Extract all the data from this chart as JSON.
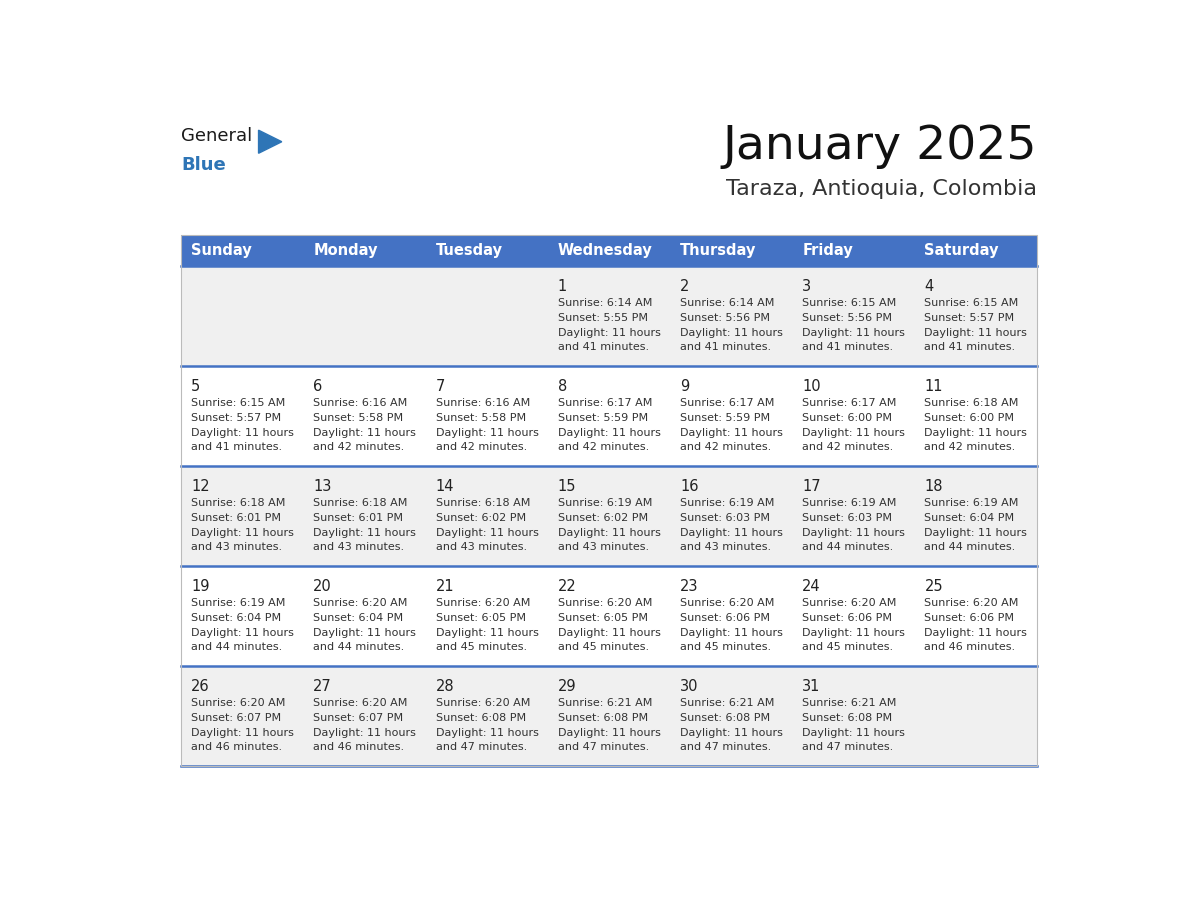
{
  "title": "January 2025",
  "subtitle": "Taraza, Antioquia, Colombia",
  "days_of_week": [
    "Sunday",
    "Monday",
    "Tuesday",
    "Wednesday",
    "Thursday",
    "Friday",
    "Saturday"
  ],
  "header_bg": "#4472C4",
  "header_text": "#FFFFFF",
  "row_bg_odd": "#F0F0F0",
  "row_bg_even": "#FFFFFF",
  "row_separator": "#4472C4",
  "day_number_color": "#222222",
  "text_color": "#333333",
  "calendar_data": [
    [
      null,
      null,
      null,
      {
        "day": 1,
        "sunrise": "6:14 AM",
        "sunset": "5:55 PM",
        "daylight_h": "11 hours",
        "daylight_m": "and 41 minutes."
      },
      {
        "day": 2,
        "sunrise": "6:14 AM",
        "sunset": "5:56 PM",
        "daylight_h": "11 hours",
        "daylight_m": "and 41 minutes."
      },
      {
        "day": 3,
        "sunrise": "6:15 AM",
        "sunset": "5:56 PM",
        "daylight_h": "11 hours",
        "daylight_m": "and 41 minutes."
      },
      {
        "day": 4,
        "sunrise": "6:15 AM",
        "sunset": "5:57 PM",
        "daylight_h": "11 hours",
        "daylight_m": "and 41 minutes."
      }
    ],
    [
      {
        "day": 5,
        "sunrise": "6:15 AM",
        "sunset": "5:57 PM",
        "daylight_h": "11 hours",
        "daylight_m": "and 41 minutes."
      },
      {
        "day": 6,
        "sunrise": "6:16 AM",
        "sunset": "5:58 PM",
        "daylight_h": "11 hours",
        "daylight_m": "and 42 minutes."
      },
      {
        "day": 7,
        "sunrise": "6:16 AM",
        "sunset": "5:58 PM",
        "daylight_h": "11 hours",
        "daylight_m": "and 42 minutes."
      },
      {
        "day": 8,
        "sunrise": "6:17 AM",
        "sunset": "5:59 PM",
        "daylight_h": "11 hours",
        "daylight_m": "and 42 minutes."
      },
      {
        "day": 9,
        "sunrise": "6:17 AM",
        "sunset": "5:59 PM",
        "daylight_h": "11 hours",
        "daylight_m": "and 42 minutes."
      },
      {
        "day": 10,
        "sunrise": "6:17 AM",
        "sunset": "6:00 PM",
        "daylight_h": "11 hours",
        "daylight_m": "and 42 minutes."
      },
      {
        "day": 11,
        "sunrise": "6:18 AM",
        "sunset": "6:00 PM",
        "daylight_h": "11 hours",
        "daylight_m": "and 42 minutes."
      }
    ],
    [
      {
        "day": 12,
        "sunrise": "6:18 AM",
        "sunset": "6:01 PM",
        "daylight_h": "11 hours",
        "daylight_m": "and 43 minutes."
      },
      {
        "day": 13,
        "sunrise": "6:18 AM",
        "sunset": "6:01 PM",
        "daylight_h": "11 hours",
        "daylight_m": "and 43 minutes."
      },
      {
        "day": 14,
        "sunrise": "6:18 AM",
        "sunset": "6:02 PM",
        "daylight_h": "11 hours",
        "daylight_m": "and 43 minutes."
      },
      {
        "day": 15,
        "sunrise": "6:19 AM",
        "sunset": "6:02 PM",
        "daylight_h": "11 hours",
        "daylight_m": "and 43 minutes."
      },
      {
        "day": 16,
        "sunrise": "6:19 AM",
        "sunset": "6:03 PM",
        "daylight_h": "11 hours",
        "daylight_m": "and 43 minutes."
      },
      {
        "day": 17,
        "sunrise": "6:19 AM",
        "sunset": "6:03 PM",
        "daylight_h": "11 hours",
        "daylight_m": "and 44 minutes."
      },
      {
        "day": 18,
        "sunrise": "6:19 AM",
        "sunset": "6:04 PM",
        "daylight_h": "11 hours",
        "daylight_m": "and 44 minutes."
      }
    ],
    [
      {
        "day": 19,
        "sunrise": "6:19 AM",
        "sunset": "6:04 PM",
        "daylight_h": "11 hours",
        "daylight_m": "and 44 minutes."
      },
      {
        "day": 20,
        "sunrise": "6:20 AM",
        "sunset": "6:04 PM",
        "daylight_h": "11 hours",
        "daylight_m": "and 44 minutes."
      },
      {
        "day": 21,
        "sunrise": "6:20 AM",
        "sunset": "6:05 PM",
        "daylight_h": "11 hours",
        "daylight_m": "and 45 minutes."
      },
      {
        "day": 22,
        "sunrise": "6:20 AM",
        "sunset": "6:05 PM",
        "daylight_h": "11 hours",
        "daylight_m": "and 45 minutes."
      },
      {
        "day": 23,
        "sunrise": "6:20 AM",
        "sunset": "6:06 PM",
        "daylight_h": "11 hours",
        "daylight_m": "and 45 minutes."
      },
      {
        "day": 24,
        "sunrise": "6:20 AM",
        "sunset": "6:06 PM",
        "daylight_h": "11 hours",
        "daylight_m": "and 45 minutes."
      },
      {
        "day": 25,
        "sunrise": "6:20 AM",
        "sunset": "6:06 PM",
        "daylight_h": "11 hours",
        "daylight_m": "and 46 minutes."
      }
    ],
    [
      {
        "day": 26,
        "sunrise": "6:20 AM",
        "sunset": "6:07 PM",
        "daylight_h": "11 hours",
        "daylight_m": "and 46 minutes."
      },
      {
        "day": 27,
        "sunrise": "6:20 AM",
        "sunset": "6:07 PM",
        "daylight_h": "11 hours",
        "daylight_m": "and 46 minutes."
      },
      {
        "day": 28,
        "sunrise": "6:20 AM",
        "sunset": "6:08 PM",
        "daylight_h": "11 hours",
        "daylight_m": "and 47 minutes."
      },
      {
        "day": 29,
        "sunrise": "6:21 AM",
        "sunset": "6:08 PM",
        "daylight_h": "11 hours",
        "daylight_m": "and 47 minutes."
      },
      {
        "day": 30,
        "sunrise": "6:21 AM",
        "sunset": "6:08 PM",
        "daylight_h": "11 hours",
        "daylight_m": "and 47 minutes."
      },
      {
        "day": 31,
        "sunrise": "6:21 AM",
        "sunset": "6:08 PM",
        "daylight_h": "11 hours",
        "daylight_m": "and 47 minutes."
      },
      null
    ]
  ],
  "logo_text_general": "General",
  "logo_text_blue": "Blue",
  "logo_triangle_color": "#2E75B6",
  "logo_general_color": "#1a1a1a"
}
